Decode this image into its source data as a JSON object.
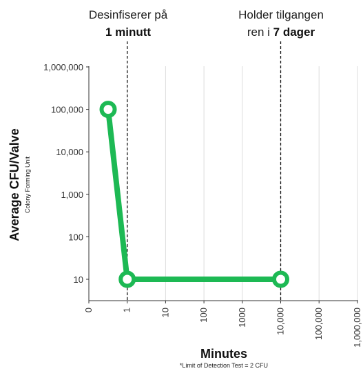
{
  "chart_data": {
    "type": "line",
    "title": "",
    "xlabel": "Minutes",
    "ylabel": "Average CFU/Valve",
    "ylabel_sub": "Colony Forming Unit",
    "footnote": "*Limit of Detection Test = 2 CFU",
    "y_scale": "log",
    "ylim": [
      1,
      1000000
    ],
    "y_ticks": [
      "1,000,000",
      "100,000",
      "10,000",
      "1,000",
      "100",
      "10"
    ],
    "x_ticks": [
      "0",
      "1",
      "10",
      "100",
      "1000",
      "10,000",
      "100,000",
      "1,000,000"
    ],
    "grid": "vertical",
    "series": [
      {
        "color": "#1db954",
        "points": [
          {
            "x": "0",
            "y": 100000
          },
          {
            "x": "1",
            "y": 10
          },
          {
            "x": "10,000",
            "y": 10
          }
        ]
      }
    ],
    "annotations": [
      {
        "at": "1",
        "line1": "Desinfiserer på",
        "line2_bold": "1 minutt"
      },
      {
        "at": "10,000",
        "line1": "Holder tilgangen",
        "line2_prefix": "ren i ",
        "line2_bold": "7 dager"
      }
    ]
  }
}
